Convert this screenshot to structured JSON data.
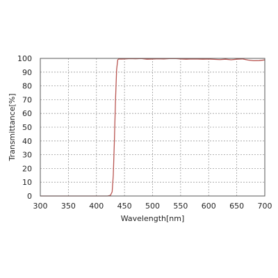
{
  "chart_data": {
    "type": "line",
    "xlabel": "Wavelength[nm]",
    "ylabel": "Transmittance[%]",
    "xlim": [
      300,
      700
    ],
    "ylim": [
      0,
      100
    ],
    "xticks": [
      "300",
      "350",
      "400",
      "450",
      "500",
      "550",
      "600",
      "650",
      "700"
    ],
    "yticks": [
      "0",
      "10",
      "20",
      "30",
      "40",
      "50",
      "60",
      "70",
      "80",
      "90",
      "100"
    ],
    "grid": true,
    "line_color": "#b85450",
    "series": [
      {
        "x": [
          300,
          350,
          400,
          420,
          425,
          428,
          430,
          432,
          434,
          436,
          438,
          440,
          445,
          450,
          460,
          470,
          480,
          490,
          500,
          510,
          520,
          530,
          540,
          550,
          560,
          570,
          580,
          590,
          600,
          610,
          620,
          630,
          640,
          650,
          660,
          670,
          680,
          690,
          700
        ],
        "y": [
          0,
          0,
          0,
          0,
          0.5,
          3,
          15,
          40,
          70,
          92,
          99,
          99.6,
          99.5,
          99.6,
          99.8,
          99.7,
          99.9,
          99.4,
          99.5,
          99.7,
          99.6,
          99.8,
          99.9,
          99.6,
          99.4,
          99.6,
          99.5,
          99.4,
          99.5,
          99.3,
          99.1,
          99.4,
          99.0,
          99.4,
          99.6,
          98.8,
          98.3,
          98.4,
          98.9
        ]
      }
    ]
  }
}
